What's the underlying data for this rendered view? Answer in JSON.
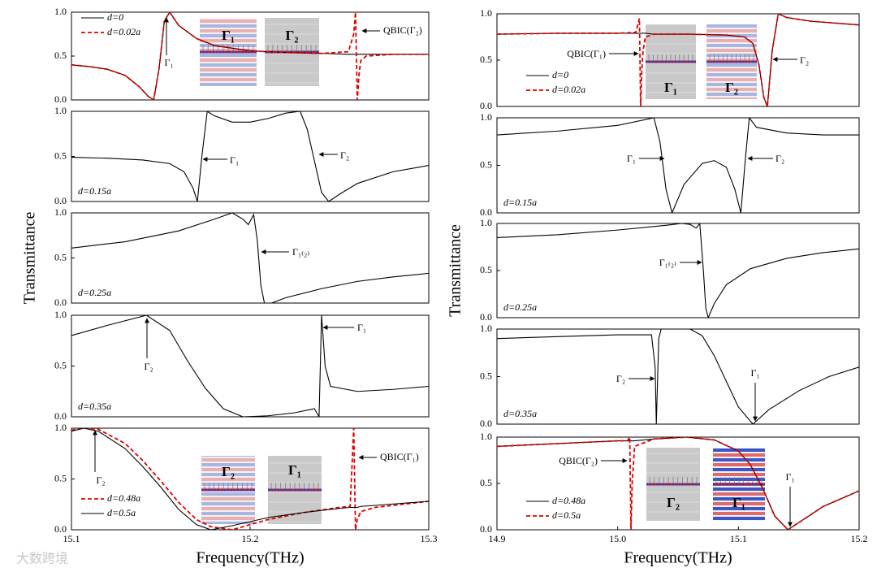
{
  "watermark": "大数跨境",
  "chart_data": [
    {
      "type": "line",
      "legend": true,
      "xlim": [
        15.1,
        15.3
      ],
      "ylim": [
        0,
        1
      ],
      "yticks": [
        {
          "value": 0,
          "label": "0.0"
        },
        0.5,
        {
          "value": 1,
          "label": "1.0"
        }
      ],
      "x": [
        15.1,
        15.11,
        15.12,
        15.13,
        15.138,
        15.143,
        15.146,
        15.149,
        15.152,
        15.155,
        15.16,
        15.17,
        15.18,
        15.2,
        15.22,
        15.24,
        15.255,
        15.258,
        15.259,
        15.26,
        15.261,
        15.262,
        15.265,
        15.28,
        15.3
      ],
      "series": [
        {
          "name": "d=0",
          "color": "#000000",
          "dash": false,
          "values": [
            0.4,
            0.38,
            0.35,
            0.28,
            0.15,
            0.04,
            0.0,
            0.35,
            0.9,
            1.0,
            0.85,
            0.7,
            0.62,
            0.56,
            0.54,
            0.53,
            0.52,
            0.52,
            0.52,
            0.52,
            0.52,
            0.52,
            0.52,
            0.52,
            0.52
          ]
        },
        {
          "name": "d=0.02a",
          "color": "#e00000",
          "dash": true,
          "values": [
            0.4,
            0.38,
            0.35,
            0.28,
            0.15,
            0.04,
            0.0,
            0.35,
            0.9,
            1.0,
            0.85,
            0.7,
            0.62,
            0.56,
            0.54,
            0.53,
            0.55,
            0.75,
            1.0,
            0.0,
            0.3,
            0.45,
            0.5,
            0.52,
            0.52
          ]
        }
      ],
      "annotations": [
        "Γ₁",
        "QBIC(Γ₂)"
      ],
      "insets": [
        "Γ₁",
        "Γ₂"
      ]
    },
    {
      "type": "line",
      "xlim": [
        15.1,
        15.3
      ],
      "ylim": [
        0,
        1
      ],
      "yticks": [
        {
          "value": 0,
          "label": "0.0"
        },
        0.5,
        {
          "value": 1,
          "label": "1.0"
        }
      ],
      "x": [
        15.1,
        15.12,
        15.14,
        15.155,
        15.163,
        15.168,
        15.1705,
        15.173,
        15.176,
        15.18,
        15.19,
        15.2,
        15.21,
        15.22,
        15.228,
        15.232,
        15.236,
        15.24,
        15.244,
        15.25,
        15.26,
        15.28,
        15.3
      ],
      "series": [
        {
          "name": "d=0.15a",
          "color": "#000000",
          "dash": false,
          "values": [
            0.49,
            0.48,
            0.46,
            0.42,
            0.33,
            0.15,
            0.0,
            0.5,
            1.0,
            0.95,
            0.88,
            0.88,
            0.92,
            0.98,
            1.0,
            0.8,
            0.45,
            0.1,
            0.0,
            0.08,
            0.2,
            0.33,
            0.4
          ]
        }
      ],
      "annotations": [
        "Γ₁",
        "Γ₂"
      ]
    },
    {
      "type": "line",
      "ylabel": "Transmittance",
      "xlim": [
        15.1,
        15.3
      ],
      "ylim": [
        0,
        1
      ],
      "yticks": [
        {
          "value": 0,
          "label": "0.0"
        },
        0.5,
        {
          "value": 1,
          "label": "1.0"
        }
      ],
      "x": [
        15.1,
        15.13,
        15.16,
        15.18,
        15.19,
        15.196,
        15.199,
        15.202,
        15.204,
        15.206,
        15.208,
        15.212,
        15.22,
        15.24,
        15.26,
        15.28,
        15.3
      ],
      "series": [
        {
          "name": "d=0.25a",
          "color": "#000000",
          "dash": false,
          "values": [
            0.61,
            0.68,
            0.8,
            0.93,
            1.0,
            0.93,
            0.87,
            0.98,
            0.7,
            0.2,
            0.0,
            0.0,
            0.06,
            0.16,
            0.24,
            0.29,
            0.33
          ]
        }
      ],
      "annotations": [
        "Γ₁₍₂₎"
      ]
    },
    {
      "type": "line",
      "xlim": [
        15.1,
        15.3
      ],
      "ylim": [
        0,
        1
      ],
      "yticks": [
        {
          "value": 0,
          "label": "0.0"
        },
        0.5,
        {
          "value": 1,
          "label": "1.0"
        }
      ],
      "x": [
        15.1,
        15.12,
        15.142,
        15.155,
        15.165,
        15.175,
        15.185,
        15.196,
        15.21,
        15.225,
        15.236,
        15.2386,
        15.24,
        15.242,
        15.245,
        15.26,
        15.28,
        15.3
      ],
      "series": [
        {
          "name": "d=0.35a",
          "color": "#000000",
          "dash": false,
          "values": [
            0.8,
            0.9,
            1.0,
            0.85,
            0.55,
            0.28,
            0.08,
            0.0,
            0.01,
            0.04,
            0.08,
            0.0,
            1.0,
            0.5,
            0.3,
            0.25,
            0.27,
            0.3
          ]
        }
      ],
      "annotations": [
        "Γ₂",
        "Γ₁"
      ]
    },
    {
      "type": "line",
      "legend": true,
      "xlabel": "Frequency(THz)",
      "xlim": [
        15.1,
        15.3
      ],
      "ylim": [
        0,
        1
      ],
      "xticks": [
        15.1,
        15.2,
        15.3
      ],
      "yticks": [
        {
          "value": 0,
          "label": "0.0"
        },
        0.5,
        {
          "value": 1,
          "label": "1.0"
        }
      ],
      "x": [
        15.1,
        15.107,
        15.115,
        15.13,
        15.14,
        15.15,
        15.16,
        15.17,
        15.178,
        15.19,
        15.21,
        15.23,
        15.25,
        15.256,
        15.258,
        15.259,
        15.26,
        15.262,
        15.27,
        15.3
      ],
      "series": [
        {
          "name": "d=0.48a",
          "color": "#e00000",
          "dash": true,
          "values": [
            0.98,
            1.0,
            0.99,
            0.85,
            0.68,
            0.48,
            0.27,
            0.1,
            0.03,
            0.0,
            0.1,
            0.17,
            0.22,
            0.23,
            1.0,
            0.0,
            0.1,
            0.18,
            0.22,
            0.28
          ]
        },
        {
          "name": "d=0.5a",
          "color": "#000000",
          "dash": false,
          "values": [
            0.97,
            1.0,
            0.97,
            0.8,
            0.62,
            0.42,
            0.2,
            0.05,
            0.0,
            0.04,
            0.12,
            0.17,
            0.21,
            0.22,
            0.22,
            0.22,
            0.22,
            0.23,
            0.24,
            0.28
          ]
        }
      ],
      "annotations": [
        "Γ₂",
        "QBIC(Γ₁)"
      ],
      "insets": [
        "Γ₂",
        "Γ₁"
      ]
    },
    {
      "type": "line",
      "legend": true,
      "xlim": [
        14.9,
        15.2
      ],
      "ylim": [
        0,
        1
      ],
      "yticks": [
        {
          "value": 0,
          "label": "0.0"
        },
        0.5,
        {
          "value": 1,
          "label": "1.0"
        }
      ],
      "x": [
        14.9,
        14.95,
        15.0,
        15.015,
        15.018,
        15.019,
        15.02,
        15.021,
        15.023,
        15.03,
        15.06,
        15.09,
        15.105,
        15.112,
        15.117,
        15.121,
        15.124,
        15.128,
        15.133,
        15.14,
        15.16,
        15.18,
        15.2
      ],
      "series": [
        {
          "name": "d=0",
          "color": "#000000",
          "dash": false,
          "values": [
            0.78,
            0.79,
            0.79,
            0.79,
            0.79,
            0.79,
            0.79,
            0.79,
            0.79,
            0.78,
            0.78,
            0.77,
            0.75,
            0.68,
            0.45,
            0.1,
            0.0,
            0.6,
            1.0,
            0.96,
            0.92,
            0.9,
            0.88
          ]
        },
        {
          "name": "d=0.02a",
          "color": "#e00000",
          "dash": true,
          "values": [
            0.78,
            0.79,
            0.79,
            0.8,
            0.95,
            0.0,
            0.4,
            0.6,
            0.75,
            0.78,
            0.78,
            0.77,
            0.75,
            0.68,
            0.45,
            0.1,
            0.0,
            0.6,
            1.0,
            0.96,
            0.92,
            0.9,
            0.88
          ]
        }
      ],
      "annotations": [
        "QBIC(Γ₁)",
        "Γ₂"
      ],
      "insets": [
        "Γ₁",
        "Γ₂"
      ]
    },
    {
      "type": "line",
      "xlim": [
        14.9,
        15.2
      ],
      "ylim": [
        0,
        1
      ],
      "yticks": [
        {
          "value": 0,
          "label": "0.0"
        },
        0.5,
        {
          "value": 1,
          "label": "1.0"
        }
      ],
      "x": [
        14.9,
        14.95,
        15.0,
        15.03,
        15.035,
        15.04,
        15.045,
        15.055,
        15.07,
        15.08,
        15.09,
        15.097,
        15.102,
        15.106,
        15.109,
        15.115,
        15.14,
        15.17,
        15.2
      ],
      "series": [
        {
          "name": "d=0.15a",
          "color": "#000000",
          "dash": false,
          "values": [
            0.82,
            0.86,
            0.92,
            1.0,
            0.75,
            0.25,
            0.0,
            0.3,
            0.52,
            0.55,
            0.48,
            0.25,
            0.0,
            0.6,
            1.0,
            0.9,
            0.84,
            0.82,
            0.82
          ]
        }
      ],
      "annotations": [
        "Γ₁",
        "Γ₂"
      ]
    },
    {
      "type": "line",
      "ylabel": "Transmittance",
      "xlim": [
        14.9,
        15.2
      ],
      "ylim": [
        0,
        1
      ],
      "yticks": [
        {
          "value": 0,
          "label": "0.0"
        },
        0.5,
        {
          "value": 1,
          "label": "1.0"
        }
      ],
      "x": [
        14.9,
        14.95,
        15.0,
        15.04,
        15.053,
        15.06,
        15.065,
        15.068,
        15.071,
        15.073,
        15.075,
        15.08,
        15.09,
        15.11,
        15.14,
        15.17,
        15.2
      ],
      "series": [
        {
          "name": "d=0.25a",
          "color": "#000000",
          "dash": false,
          "values": [
            0.85,
            0.88,
            0.93,
            0.98,
            1.0,
            0.99,
            0.95,
            1.0,
            0.5,
            0.1,
            0.0,
            0.15,
            0.35,
            0.52,
            0.63,
            0.69,
            0.73
          ]
        }
      ],
      "annotations": [
        "Γ₁₍₂₎"
      ]
    },
    {
      "type": "line",
      "xlim": [
        14.9,
        15.2
      ],
      "ylim": [
        0,
        1
      ],
      "yticks": [
        {
          "value": 0,
          "label": "0.0"
        },
        0.5,
        {
          "value": 1,
          "label": "1.0"
        }
      ],
      "x": [
        14.9,
        14.95,
        15.0,
        15.028,
        15.031,
        15.032,
        15.034,
        15.036,
        15.06,
        15.07,
        15.08,
        15.09,
        15.1,
        15.112,
        15.125,
        15.15,
        15.175,
        15.2
      ],
      "series": [
        {
          "name": "d=0.35a",
          "color": "#000000",
          "dash": false,
          "values": [
            0.9,
            0.92,
            0.94,
            0.94,
            0.6,
            0.0,
            0.9,
            1.0,
            1.0,
            0.93,
            0.72,
            0.45,
            0.18,
            0.0,
            0.15,
            0.35,
            0.5,
            0.6
          ]
        }
      ],
      "annotations": [
        "Γ₂",
        "Γ₁"
      ]
    },
    {
      "type": "line",
      "legend": true,
      "xlabel": "Frequency(THz)",
      "xlim": [
        14.9,
        15.2
      ],
      "ylim": [
        0,
        1
      ],
      "xticks": [
        14.9,
        {
          "value": 15,
          "label": "15.0"
        },
        15.1,
        15.2
      ],
      "yticks": [
        {
          "value": 0,
          "label": "0.0"
        },
        0.5,
        {
          "value": 1,
          "label": "1.0"
        }
      ],
      "x": [
        14.9,
        14.95,
        15.0,
        15.008,
        15.01,
        15.011,
        15.012,
        15.014,
        15.03,
        15.057,
        15.08,
        15.1,
        15.11,
        15.12,
        15.13,
        15.141,
        15.155,
        15.17,
        15.2
      ],
      "series": [
        {
          "name": "d=0.48a",
          "color": "#000000",
          "dash": false,
          "values": [
            0.9,
            0.93,
            0.96,
            0.96,
            0.96,
            0.96,
            0.96,
            0.96,
            0.98,
            1.0,
            0.97,
            0.85,
            0.7,
            0.45,
            0.15,
            0.0,
            0.12,
            0.25,
            0.42
          ]
        },
        {
          "name": "d=0.5a",
          "color": "#e00000",
          "dash": true,
          "values": [
            0.9,
            0.93,
            0.96,
            0.96,
            1.0,
            0.0,
            0.5,
            0.9,
            0.98,
            1.0,
            0.97,
            0.85,
            0.7,
            0.45,
            0.15,
            0.0,
            0.12,
            0.25,
            0.42
          ]
        }
      ],
      "annotations": [
        "QBIC(Γ₂)",
        "Γ₁"
      ],
      "insets": [
        "Γ₂",
        "Γ₁"
      ]
    }
  ]
}
